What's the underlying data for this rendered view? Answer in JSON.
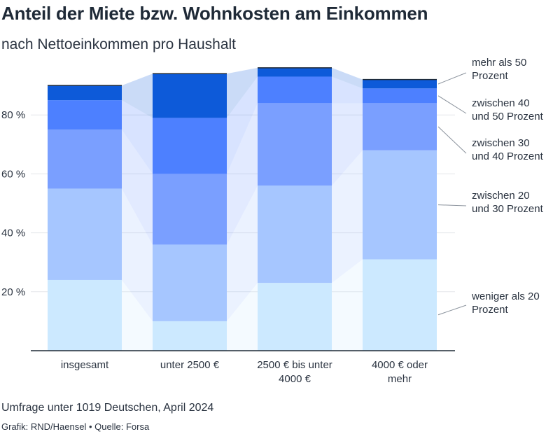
{
  "title": "Anteil der Miete bzw. Wohnkosten am Einkommen",
  "subtitle": "nach Nettoeinkommen pro Haushalt",
  "note": "Umfrage unter 1019 Deutschen, April 2024",
  "credit": "Grafik: RND/Haensel • Quelle: Forsa",
  "colors": {
    "weniger_20": "#cce9ff",
    "20_30": "#a6c6ff",
    "30_40": "#7a9fff",
    "40_50": "#4d80ff",
    "mehr_50": "#0d5ad9"
  },
  "chart_data": {
    "type": "bar",
    "stacked": true,
    "categories": [
      [
        "insgesamt"
      ],
      [
        "unter 2500 €"
      ],
      [
        "2500 € bis unter",
        "4000 €"
      ],
      [
        "4000 € oder",
        "mehr"
      ]
    ],
    "series": [
      {
        "name": "weniger als 20 Prozent",
        "label_lines": [
          "weniger als 20",
          "Prozent"
        ],
        "color": "#cce9ff",
        "values": [
          24,
          10,
          23,
          31
        ]
      },
      {
        "name": "zwischen 20 und 30 Prozent",
        "label_lines": [
          "zwischen 20",
          "und 30 Prozent"
        ],
        "color": "#a6c6ff",
        "values": [
          31,
          26,
          33,
          37
        ]
      },
      {
        "name": "zwischen 30 und 40 Prozent",
        "label_lines": [
          "zwischen 30",
          "und 40 Prozent"
        ],
        "color": "#7a9fff",
        "values": [
          20,
          24,
          28,
          16
        ]
      },
      {
        "name": "zwischen 40 und 50 Prozent",
        "label_lines": [
          "zwischen 40",
          "und 50 Prozent"
        ],
        "color": "#4d80ff",
        "values": [
          10,
          19,
          9,
          5
        ]
      },
      {
        "name": "mehr als 50 Prozent",
        "label_lines": [
          "mehr als 50",
          "Prozent"
        ],
        "color": "#0d5ad9",
        "values": [
          5,
          15,
          3,
          3
        ]
      }
    ],
    "yticks": [
      20,
      40,
      60,
      80
    ],
    "ytick_suffix": " %",
    "ylim": [
      0,
      97
    ],
    "grid": true,
    "legend_position": "right"
  }
}
